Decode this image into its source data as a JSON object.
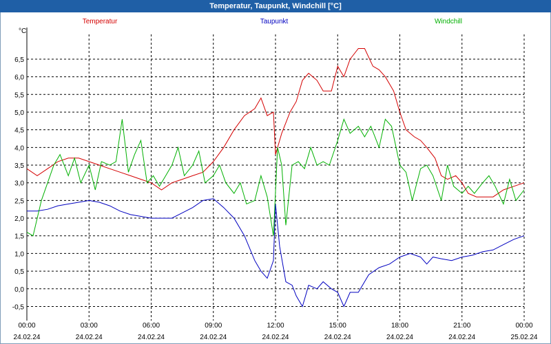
{
  "window": {
    "title": "Temperatur, Taupunkt, Windchill [°C]"
  },
  "colors": {
    "title_bar": "#1f5fa6",
    "temperature": "#d40000",
    "dewpoint": "#0000c0",
    "windchill": "#00b000",
    "grid": "#000000"
  },
  "chart_data": {
    "type": "line",
    "title": "Temperatur, Taupunkt, Windchill [°C]",
    "ylabel": "°C",
    "xlabel": "",
    "ylim": [
      -0.9,
      7.2
    ],
    "xlim": [
      0,
      24
    ],
    "grid": true,
    "legend_position": "top",
    "y_ticks": [
      "-0,5",
      "0,0",
      "0,5",
      "1,0",
      "1,5",
      "2,0",
      "2,5",
      "3,0",
      "3,5",
      "4,0",
      "4,5",
      "5,0",
      "5,5",
      "6,0",
      "6,5"
    ],
    "y_tick_values": [
      -0.5,
      0,
      0.5,
      1.0,
      1.5,
      2.0,
      2.5,
      3.0,
      3.5,
      4.0,
      4.5,
      5.0,
      5.5,
      6.0,
      6.5
    ],
    "x_ticks": [
      {
        "time": "00:00",
        "date": "24.02.24",
        "hour": 0
      },
      {
        "time": "03:00",
        "date": "24.02.24",
        "hour": 3
      },
      {
        "time": "06:00",
        "date": "24.02.24",
        "hour": 6
      },
      {
        "time": "09:00",
        "date": "24.02.24",
        "hour": 9
      },
      {
        "time": "12:00",
        "date": "24.02.24",
        "hour": 12
      },
      {
        "time": "15:00",
        "date": "24.02.24",
        "hour": 15
      },
      {
        "time": "18:00",
        "date": "24.02.24",
        "hour": 18
      },
      {
        "time": "21:00",
        "date": "24.02.24",
        "hour": 21
      },
      {
        "time": "00:00",
        "date": "25.02.24",
        "hour": 24
      }
    ],
    "series": [
      {
        "name": "Temperatur",
        "color": "#d40000",
        "points": [
          [
            0,
            3.4
          ],
          [
            0.5,
            3.2
          ],
          [
            1,
            3.4
          ],
          [
            1.5,
            3.6
          ],
          [
            2,
            3.7
          ],
          [
            2.5,
            3.7
          ],
          [
            3,
            3.6
          ],
          [
            3.5,
            3.5
          ],
          [
            4,
            3.4
          ],
          [
            4.5,
            3.3
          ],
          [
            5,
            3.2
          ],
          [
            5.5,
            3.1
          ],
          [
            6,
            3.0
          ],
          [
            6.5,
            2.8
          ],
          [
            7,
            3.0
          ],
          [
            7.5,
            3.1
          ],
          [
            8,
            3.2
          ],
          [
            8.5,
            3.3
          ],
          [
            9,
            3.6
          ],
          [
            9.5,
            4.0
          ],
          [
            10,
            4.5
          ],
          [
            10.5,
            4.9
          ],
          [
            11,
            5.1
          ],
          [
            11.3,
            5.4
          ],
          [
            11.6,
            4.9
          ],
          [
            11.9,
            5.0
          ],
          [
            12,
            3.8
          ],
          [
            12.3,
            4.4
          ],
          [
            12.7,
            5.0
          ],
          [
            13,
            5.3
          ],
          [
            13.3,
            5.9
          ],
          [
            13.6,
            6.1
          ],
          [
            14,
            5.9
          ],
          [
            14.3,
            5.6
          ],
          [
            14.7,
            5.6
          ],
          [
            15,
            6.3
          ],
          [
            15.3,
            6.0
          ],
          [
            15.6,
            6.5
          ],
          [
            16,
            6.8
          ],
          [
            16.3,
            6.8
          ],
          [
            16.7,
            6.3
          ],
          [
            17,
            6.2
          ],
          [
            17.3,
            6.0
          ],
          [
            17.7,
            5.6
          ],
          [
            18,
            5.0
          ],
          [
            18.3,
            4.5
          ],
          [
            18.7,
            4.3
          ],
          [
            19,
            4.2
          ],
          [
            19.3,
            4.0
          ],
          [
            19.7,
            3.7
          ],
          [
            20,
            3.2
          ],
          [
            20.3,
            3.1
          ],
          [
            20.7,
            3.2
          ],
          [
            21,
            3.0
          ],
          [
            21.3,
            2.7
          ],
          [
            21.7,
            2.6
          ],
          [
            22,
            2.6
          ],
          [
            22.5,
            2.6
          ],
          [
            23,
            2.8
          ],
          [
            23.5,
            2.9
          ],
          [
            24,
            3.0
          ]
        ]
      },
      {
        "name": "Taupunkt",
        "color": "#0000c0",
        "points": [
          [
            0,
            2.2
          ],
          [
            0.5,
            2.2
          ],
          [
            1,
            2.25
          ],
          [
            1.5,
            2.35
          ],
          [
            2,
            2.4
          ],
          [
            2.5,
            2.45
          ],
          [
            3,
            2.5
          ],
          [
            3.5,
            2.45
          ],
          [
            4,
            2.35
          ],
          [
            4.5,
            2.2
          ],
          [
            5,
            2.1
          ],
          [
            5.5,
            2.05
          ],
          [
            6,
            2.0
          ],
          [
            6.5,
            2.0
          ],
          [
            7,
            2.0
          ],
          [
            7.5,
            2.15
          ],
          [
            8,
            2.3
          ],
          [
            8.5,
            2.5
          ],
          [
            9,
            2.55
          ],
          [
            9.5,
            2.3
          ],
          [
            10,
            2.0
          ],
          [
            10.5,
            1.5
          ],
          [
            11,
            0.8
          ],
          [
            11.3,
            0.5
          ],
          [
            11.6,
            0.3
          ],
          [
            11.9,
            0.8
          ],
          [
            12,
            2.4
          ],
          [
            12.2,
            1.2
          ],
          [
            12.5,
            0.2
          ],
          [
            12.8,
            0.1
          ],
          [
            13,
            -0.2
          ],
          [
            13.3,
            -0.5
          ],
          [
            13.6,
            0.1
          ],
          [
            14,
            0.0
          ],
          [
            14.3,
            0.2
          ],
          [
            14.7,
            0.0
          ],
          [
            15,
            -0.1
          ],
          [
            15.3,
            -0.5
          ],
          [
            15.6,
            -0.1
          ],
          [
            16,
            -0.1
          ],
          [
            16.5,
            0.4
          ],
          [
            17,
            0.6
          ],
          [
            17.5,
            0.7
          ],
          [
            18,
            0.9
          ],
          [
            18.5,
            1.0
          ],
          [
            19,
            0.9
          ],
          [
            19.3,
            0.7
          ],
          [
            19.6,
            0.9
          ],
          [
            20,
            0.85
          ],
          [
            20.5,
            0.8
          ],
          [
            21,
            0.9
          ],
          [
            21.5,
            0.95
          ],
          [
            22,
            1.05
          ],
          [
            22.5,
            1.1
          ],
          [
            23,
            1.25
          ],
          [
            23.5,
            1.4
          ],
          [
            24,
            1.5
          ]
        ]
      },
      {
        "name": "Windchill",
        "color": "#00b000",
        "points": [
          [
            0,
            1.6
          ],
          [
            0.3,
            1.5
          ],
          [
            0.7,
            2.5
          ],
          [
            1,
            3.0
          ],
          [
            1.3,
            3.5
          ],
          [
            1.6,
            3.8
          ],
          [
            2,
            3.2
          ],
          [
            2.3,
            3.7
          ],
          [
            2.6,
            3.0
          ],
          [
            3,
            3.5
          ],
          [
            3.3,
            2.8
          ],
          [
            3.6,
            3.6
          ],
          [
            4,
            3.5
          ],
          [
            4.3,
            3.6
          ],
          [
            4.6,
            4.8
          ],
          [
            4.9,
            3.3
          ],
          [
            5.2,
            3.8
          ],
          [
            5.5,
            4.2
          ],
          [
            5.8,
            3.0
          ],
          [
            6.1,
            3.2
          ],
          [
            6.4,
            2.9
          ],
          [
            6.7,
            3.2
          ],
          [
            7,
            3.5
          ],
          [
            7.3,
            4.0
          ],
          [
            7.6,
            3.2
          ],
          [
            8,
            3.5
          ],
          [
            8.3,
            3.9
          ],
          [
            8.6,
            3.0
          ],
          [
            9,
            3.2
          ],
          [
            9.3,
            3.5
          ],
          [
            9.6,
            3.0
          ],
          [
            10,
            2.7
          ],
          [
            10.3,
            3.0
          ],
          [
            10.6,
            2.4
          ],
          [
            11,
            2.5
          ],
          [
            11.3,
            3.2
          ],
          [
            11.6,
            2.6
          ],
          [
            11.9,
            1.5
          ],
          [
            12.1,
            4.0
          ],
          [
            12.3,
            3.5
          ],
          [
            12.5,
            1.8
          ],
          [
            12.8,
            3.5
          ],
          [
            13.1,
            3.6
          ],
          [
            13.4,
            3.4
          ],
          [
            13.7,
            4.0
          ],
          [
            14,
            3.5
          ],
          [
            14.3,
            3.6
          ],
          [
            14.6,
            3.5
          ],
          [
            15,
            4.2
          ],
          [
            15.3,
            4.8
          ],
          [
            15.6,
            4.4
          ],
          [
            16,
            4.6
          ],
          [
            16.3,
            4.3
          ],
          [
            16.6,
            4.6
          ],
          [
            17,
            4.0
          ],
          [
            17.3,
            4.8
          ],
          [
            17.6,
            4.6
          ],
          [
            18,
            3.5
          ],
          [
            18.3,
            3.3
          ],
          [
            18.6,
            2.5
          ],
          [
            19,
            3.4
          ],
          [
            19.3,
            3.5
          ],
          [
            19.6,
            3.2
          ],
          [
            20,
            2.5
          ],
          [
            20.3,
            3.5
          ],
          [
            20.6,
            2.9
          ],
          [
            21,
            2.7
          ],
          [
            21.3,
            2.9
          ],
          [
            21.6,
            2.7
          ],
          [
            22,
            3.0
          ],
          [
            22.3,
            3.2
          ],
          [
            22.6,
            2.9
          ],
          [
            23,
            2.4
          ],
          [
            23.3,
            3.1
          ],
          [
            23.6,
            2.5
          ],
          [
            24,
            2.8
          ]
        ]
      }
    ]
  }
}
